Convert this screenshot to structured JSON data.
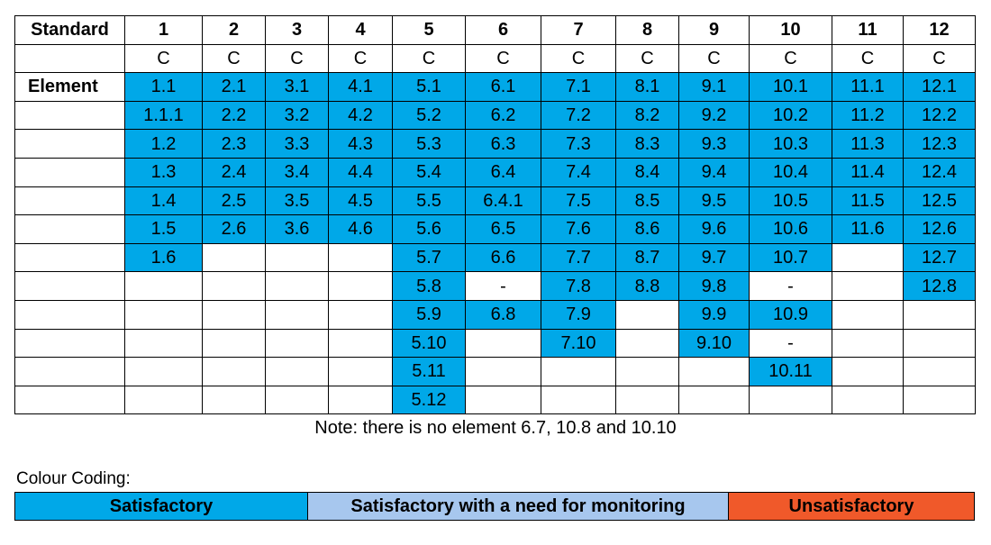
{
  "table": {
    "corner_label": "Standard",
    "element_label": "Element",
    "standards": [
      {
        "number": "1",
        "code": "C"
      },
      {
        "number": "2",
        "code": "C"
      },
      {
        "number": "3",
        "code": "C"
      },
      {
        "number": "4",
        "code": "C"
      },
      {
        "number": "5",
        "code": "C"
      },
      {
        "number": "6",
        "code": "C"
      },
      {
        "number": "7",
        "code": "C"
      },
      {
        "number": "8",
        "code": "C"
      },
      {
        "number": "9",
        "code": "C"
      },
      {
        "number": "10",
        "code": "C"
      },
      {
        "number": "11",
        "code": "C"
      },
      {
        "number": "12",
        "code": "C"
      }
    ],
    "columns": [
      [
        {
          "text": "1.1",
          "status": "satisfactory"
        },
        {
          "text": "1.1.1",
          "status": "satisfactory"
        },
        {
          "text": "1.2",
          "status": "satisfactory"
        },
        {
          "text": "1.3",
          "status": "satisfactory"
        },
        {
          "text": "1.4",
          "status": "satisfactory"
        },
        {
          "text": "1.5",
          "status": "satisfactory"
        },
        {
          "text": "1.6",
          "status": "satisfactory"
        }
      ],
      [
        {
          "text": "2.1",
          "status": "satisfactory"
        },
        {
          "text": "2.2",
          "status": "satisfactory"
        },
        {
          "text": "2.3",
          "status": "satisfactory"
        },
        {
          "text": "2.4",
          "status": "satisfactory"
        },
        {
          "text": "2.5",
          "status": "satisfactory"
        },
        {
          "text": "2.6",
          "status": "satisfactory"
        }
      ],
      [
        {
          "text": "3.1",
          "status": "satisfactory"
        },
        {
          "text": "3.2",
          "status": "satisfactory"
        },
        {
          "text": "3.3",
          "status": "satisfactory"
        },
        {
          "text": "3.4",
          "status": "satisfactory"
        },
        {
          "text": "3.5",
          "status": "satisfactory"
        },
        {
          "text": "3.6",
          "status": "satisfactory"
        }
      ],
      [
        {
          "text": "4.1",
          "status": "satisfactory"
        },
        {
          "text": "4.2",
          "status": "satisfactory"
        },
        {
          "text": "4.3",
          "status": "satisfactory"
        },
        {
          "text": "4.4",
          "status": "satisfactory"
        },
        {
          "text": "4.5",
          "status": "satisfactory"
        },
        {
          "text": "4.6",
          "status": "satisfactory"
        }
      ],
      [
        {
          "text": "5.1",
          "status": "satisfactory"
        },
        {
          "text": "5.2",
          "status": "satisfactory"
        },
        {
          "text": "5.3",
          "status": "satisfactory"
        },
        {
          "text": "5.4",
          "status": "satisfactory"
        },
        {
          "text": "5.5",
          "status": "satisfactory"
        },
        {
          "text": "5.6",
          "status": "satisfactory"
        },
        {
          "text": "5.7",
          "status": "satisfactory"
        },
        {
          "text": "5.8",
          "status": "satisfactory"
        },
        {
          "text": "5.9",
          "status": "satisfactory"
        },
        {
          "text": "5.10",
          "status": "satisfactory"
        },
        {
          "text": "5.11",
          "status": "satisfactory"
        },
        {
          "text": "5.12",
          "status": "satisfactory"
        }
      ],
      [
        {
          "text": "6.1",
          "status": "satisfactory"
        },
        {
          "text": "6.2",
          "status": "satisfactory"
        },
        {
          "text": "6.3",
          "status": "satisfactory"
        },
        {
          "text": "6.4",
          "status": "satisfactory"
        },
        {
          "text": "6.4.1",
          "status": "satisfactory"
        },
        {
          "text": "6.5",
          "status": "satisfactory"
        },
        {
          "text": "6.6",
          "status": "satisfactory"
        },
        {
          "text": "-",
          "status": "none"
        },
        {
          "text": "6.8",
          "status": "satisfactory"
        }
      ],
      [
        {
          "text": "7.1",
          "status": "satisfactory"
        },
        {
          "text": "7.2",
          "status": "satisfactory"
        },
        {
          "text": "7.3",
          "status": "satisfactory"
        },
        {
          "text": "7.4",
          "status": "satisfactory"
        },
        {
          "text": "7.5",
          "status": "satisfactory"
        },
        {
          "text": "7.6",
          "status": "satisfactory"
        },
        {
          "text": "7.7",
          "status": "satisfactory"
        },
        {
          "text": "7.8",
          "status": "satisfactory"
        },
        {
          "text": "7.9",
          "status": "satisfactory"
        },
        {
          "text": "7.10",
          "status": "satisfactory"
        }
      ],
      [
        {
          "text": "8.1",
          "status": "satisfactory"
        },
        {
          "text": "8.2",
          "status": "satisfactory"
        },
        {
          "text": "8.3",
          "status": "satisfactory"
        },
        {
          "text": "8.4",
          "status": "satisfactory"
        },
        {
          "text": "8.5",
          "status": "satisfactory"
        },
        {
          "text": "8.6",
          "status": "satisfactory"
        },
        {
          "text": "8.7",
          "status": "satisfactory"
        },
        {
          "text": "8.8",
          "status": "satisfactory"
        }
      ],
      [
        {
          "text": "9.1",
          "status": "satisfactory"
        },
        {
          "text": "9.2",
          "status": "satisfactory"
        },
        {
          "text": "9.3",
          "status": "satisfactory"
        },
        {
          "text": "9.4",
          "status": "satisfactory"
        },
        {
          "text": "9.5",
          "status": "satisfactory"
        },
        {
          "text": "9.6",
          "status": "satisfactory"
        },
        {
          "text": "9.7",
          "status": "satisfactory"
        },
        {
          "text": "9.8",
          "status": "satisfactory"
        },
        {
          "text": "9.9",
          "status": "satisfactory"
        },
        {
          "text": "9.10",
          "status": "satisfactory"
        }
      ],
      [
        {
          "text": "10.1",
          "status": "satisfactory"
        },
        {
          "text": "10.2",
          "status": "satisfactory"
        },
        {
          "text": "10.3",
          "status": "satisfactory"
        },
        {
          "text": "10.4",
          "status": "satisfactory"
        },
        {
          "text": "10.5",
          "status": "satisfactory"
        },
        {
          "text": "10.6",
          "status": "satisfactory"
        },
        {
          "text": "10.7",
          "status": "satisfactory"
        },
        {
          "text": "-",
          "status": "none"
        },
        {
          "text": "10.9",
          "status": "satisfactory"
        },
        {
          "text": "-",
          "status": "none"
        },
        {
          "text": "10.11",
          "status": "satisfactory"
        }
      ],
      [
        {
          "text": "11.1",
          "status": "satisfactory"
        },
        {
          "text": "11.2",
          "status": "satisfactory"
        },
        {
          "text": "11.3",
          "status": "satisfactory"
        },
        {
          "text": "11.4",
          "status": "satisfactory"
        },
        {
          "text": "11.5",
          "status": "satisfactory"
        },
        {
          "text": "11.6",
          "status": "satisfactory"
        }
      ],
      [
        {
          "text": "12.1",
          "status": "satisfactory"
        },
        {
          "text": "12.2",
          "status": "satisfactory"
        },
        {
          "text": "12.3",
          "status": "satisfactory"
        },
        {
          "text": "12.4",
          "status": "satisfactory"
        },
        {
          "text": "12.5",
          "status": "satisfactory"
        },
        {
          "text": "12.6",
          "status": "satisfactory"
        },
        {
          "text": "12.7",
          "status": "satisfactory"
        },
        {
          "text": "12.8",
          "status": "satisfactory"
        }
      ]
    ]
  },
  "note": "Note:  there is no element 6.7, 10.8 and 10.10",
  "legend": {
    "title": "Colour Coding:",
    "items": [
      {
        "label": "Satisfactory",
        "color": "#00a8e8"
      },
      {
        "label": "Satisfactory with a need for monitoring",
        "color": "#a7c7ee"
      },
      {
        "label": "Unsatisfactory",
        "color": "#f0592a"
      }
    ]
  }
}
